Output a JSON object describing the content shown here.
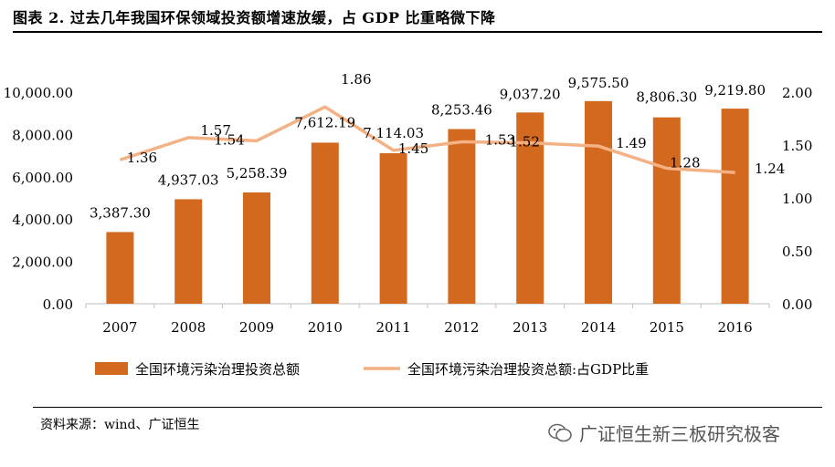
{
  "title": "图表 2. 过去几年我国环保领域投资额增速放缓，占 GDP 比重略微下降",
  "source": "资料来源：wind、广证恒生",
  "watermark": "广证恒生新三板研究极客",
  "watermark_icon": "wechat-icon",
  "colors": {
    "bar": "#D2691E",
    "line": "#F4B183"
  },
  "chart_data": {
    "type": "bar+line",
    "categories": [
      "2007",
      "2008",
      "2009",
      "2010",
      "2011",
      "2012",
      "2013",
      "2014",
      "2015",
      "2016"
    ],
    "series": [
      {
        "name": "全国环境污染治理投资总额",
        "type": "bar",
        "axis": "left",
        "values": [
          3387.3,
          4937.03,
          5258.39,
          7612.19,
          7114.03,
          8253.46,
          9037.2,
          9575.5,
          8806.3,
          9219.8
        ],
        "labels": [
          "3,387.30",
          "4,937.03",
          "5,258.39",
          "7,612.19",
          "7,114.03",
          "8,253.46",
          "9,037.20",
          "9,575.50",
          "8,806.30",
          "9,219.80"
        ]
      },
      {
        "name": "全国环境污染治理投资总额:占GDP比重",
        "type": "line",
        "axis": "right",
        "values": [
          1.36,
          1.57,
          1.54,
          1.86,
          1.45,
          1.53,
          1.52,
          1.49,
          1.28,
          1.24
        ],
        "labels": [
          "1.36",
          "1.57",
          "1.54",
          "1.86",
          "1.45",
          "1.53",
          "1.52",
          "1.49",
          "1.28",
          "1.24"
        ]
      }
    ],
    "y_left": {
      "min": 0,
      "max": 10000,
      "ticks": [
        "0.00",
        "2,000.00",
        "4,000.00",
        "6,000.00",
        "8,000.00",
        "10,000.00"
      ]
    },
    "y_right": {
      "min": 0,
      "max": 2,
      "ticks": [
        "0.00",
        "0.50",
        "1.00",
        "1.50",
        "2.00"
      ]
    },
    "legend": "bottom"
  }
}
